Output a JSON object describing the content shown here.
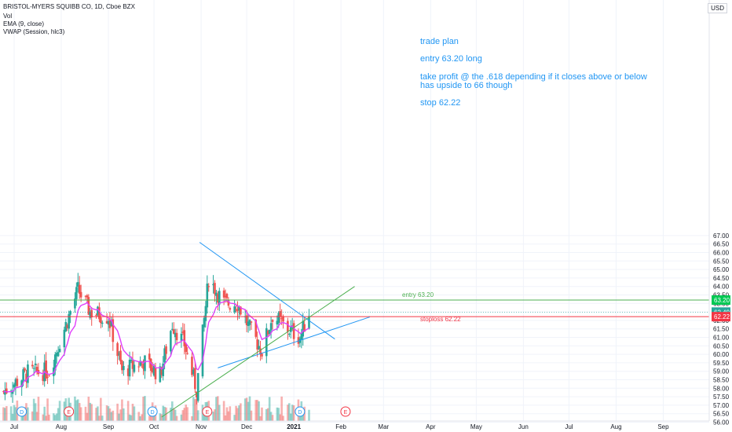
{
  "header": {
    "title": "BRISTOL-MYERS SQUIBB CO, 1D, Cboe BZX",
    "indicators": [
      "Vol",
      "EMA (9, close)",
      "VWAP (Session, hlc3)"
    ],
    "currency": "USD"
  },
  "notes": {
    "line1": "trade plan",
    "line2": "entry 63.20 long",
    "line3": "take profit @ the .618 depending if it closes above or below",
    "line4": "has upside to 66 though",
    "line5": "stop 62.22"
  },
  "colors": {
    "up": "#26a69a",
    "down": "#ef5350",
    "ema": "#e040fb",
    "trendline": "#2196f3",
    "support": "#4caf50",
    "entry": "#4caf50",
    "stop": "#f23645",
    "note": "#2196f3"
  },
  "chart_data": {
    "type": "candlestick",
    "symbol": "BRISTOL-MYERS SQUIBB CO, 1D, Cboe BZX",
    "ylim": [
      55.9,
      67.2
    ],
    "y_ticks": [
      "56.00",
      "56.50",
      "57.00",
      "57.50",
      "58.00",
      "58.50",
      "59.00",
      "59.50",
      "60.00",
      "60.50",
      "61.00",
      "61.50",
      "62.00",
      "62.50",
      "63.00",
      "63.50",
      "64.00",
      "64.50",
      "65.00",
      "65.50",
      "66.00",
      "66.50",
      "67.00"
    ],
    "x_ticks": [
      "Jul",
      "Aug",
      "Sep",
      "Oct",
      "Nov",
      "Dec",
      "2021",
      "Feb",
      "Mar",
      "Apr",
      "May",
      "Jun",
      "Jul",
      "Aug",
      "Sep"
    ],
    "price_labels": [
      {
        "label": "63.20",
        "value": 63.2,
        "color": "#00c853"
      },
      {
        "label": "62.49",
        "value": 62.49,
        "color": "#26a69a"
      },
      {
        "label": "62.22",
        "value": 62.22,
        "color": "#f23645"
      }
    ],
    "horizontal_lines": [
      {
        "name": "entry 63.20",
        "value": 63.2,
        "color": "#4caf50"
      },
      {
        "name": "stoploss 62.22",
        "value": 62.22,
        "color": "#f23645"
      }
    ],
    "trendlines": [
      {
        "from": [
          "2020-10-31",
          66.6
        ],
        "to": [
          "2021-01-28",
          60.9
        ],
        "color": "#2196f3"
      },
      {
        "from": [
          "2020-11-12",
          59.2
        ],
        "to": [
          "2021-02-20",
          62.2
        ],
        "color": "#2196f3"
      },
      {
        "from": [
          "2020-10-06",
          56.3
        ],
        "to": [
          "2021-02-10",
          64.0
        ],
        "color": "#4caf50"
      }
    ],
    "event_markers": [
      {
        "label": "D",
        "date": "2020-07-06"
      },
      {
        "label": "E",
        "date": "2020-08-06"
      },
      {
        "label": "D",
        "date": "2020-09-30"
      },
      {
        "label": "E",
        "date": "2020-11-05"
      },
      {
        "label": "D",
        "date": "2021-01-05"
      },
      {
        "label": "E",
        "date": "2021-02-04"
      }
    ],
    "approx_close_path": [
      {
        "date": "2020-06-24",
        "close": 57.8
      },
      {
        "date": "2020-07-10",
        "close": 58.9
      },
      {
        "date": "2020-07-24",
        "close": 59.0
      },
      {
        "date": "2020-08-05",
        "close": 62.0
      },
      {
        "date": "2020-08-12",
        "close": 63.8
      },
      {
        "date": "2020-08-20",
        "close": 62.5
      },
      {
        "date": "2020-09-01",
        "close": 62.2
      },
      {
        "date": "2020-09-10",
        "close": 59.0
      },
      {
        "date": "2020-09-24",
        "close": 59.6
      },
      {
        "date": "2020-10-05",
        "close": 58.8
      },
      {
        "date": "2020-10-13",
        "close": 61.8
      },
      {
        "date": "2020-10-21",
        "close": 60.6
      },
      {
        "date": "2020-10-29",
        "close": 57.9
      },
      {
        "date": "2020-11-06",
        "close": 64.5
      },
      {
        "date": "2020-11-16",
        "close": 63.0
      },
      {
        "date": "2020-11-25",
        "close": 63.0
      },
      {
        "date": "2020-12-03",
        "close": 61.5
      },
      {
        "date": "2020-12-11",
        "close": 60.2
      },
      {
        "date": "2020-12-18",
        "close": 62.3
      },
      {
        "date": "2020-12-28",
        "close": 61.5
      },
      {
        "date": "2021-01-05",
        "close": 61.0
      },
      {
        "date": "2021-01-11",
        "close": 62.49
      }
    ]
  }
}
